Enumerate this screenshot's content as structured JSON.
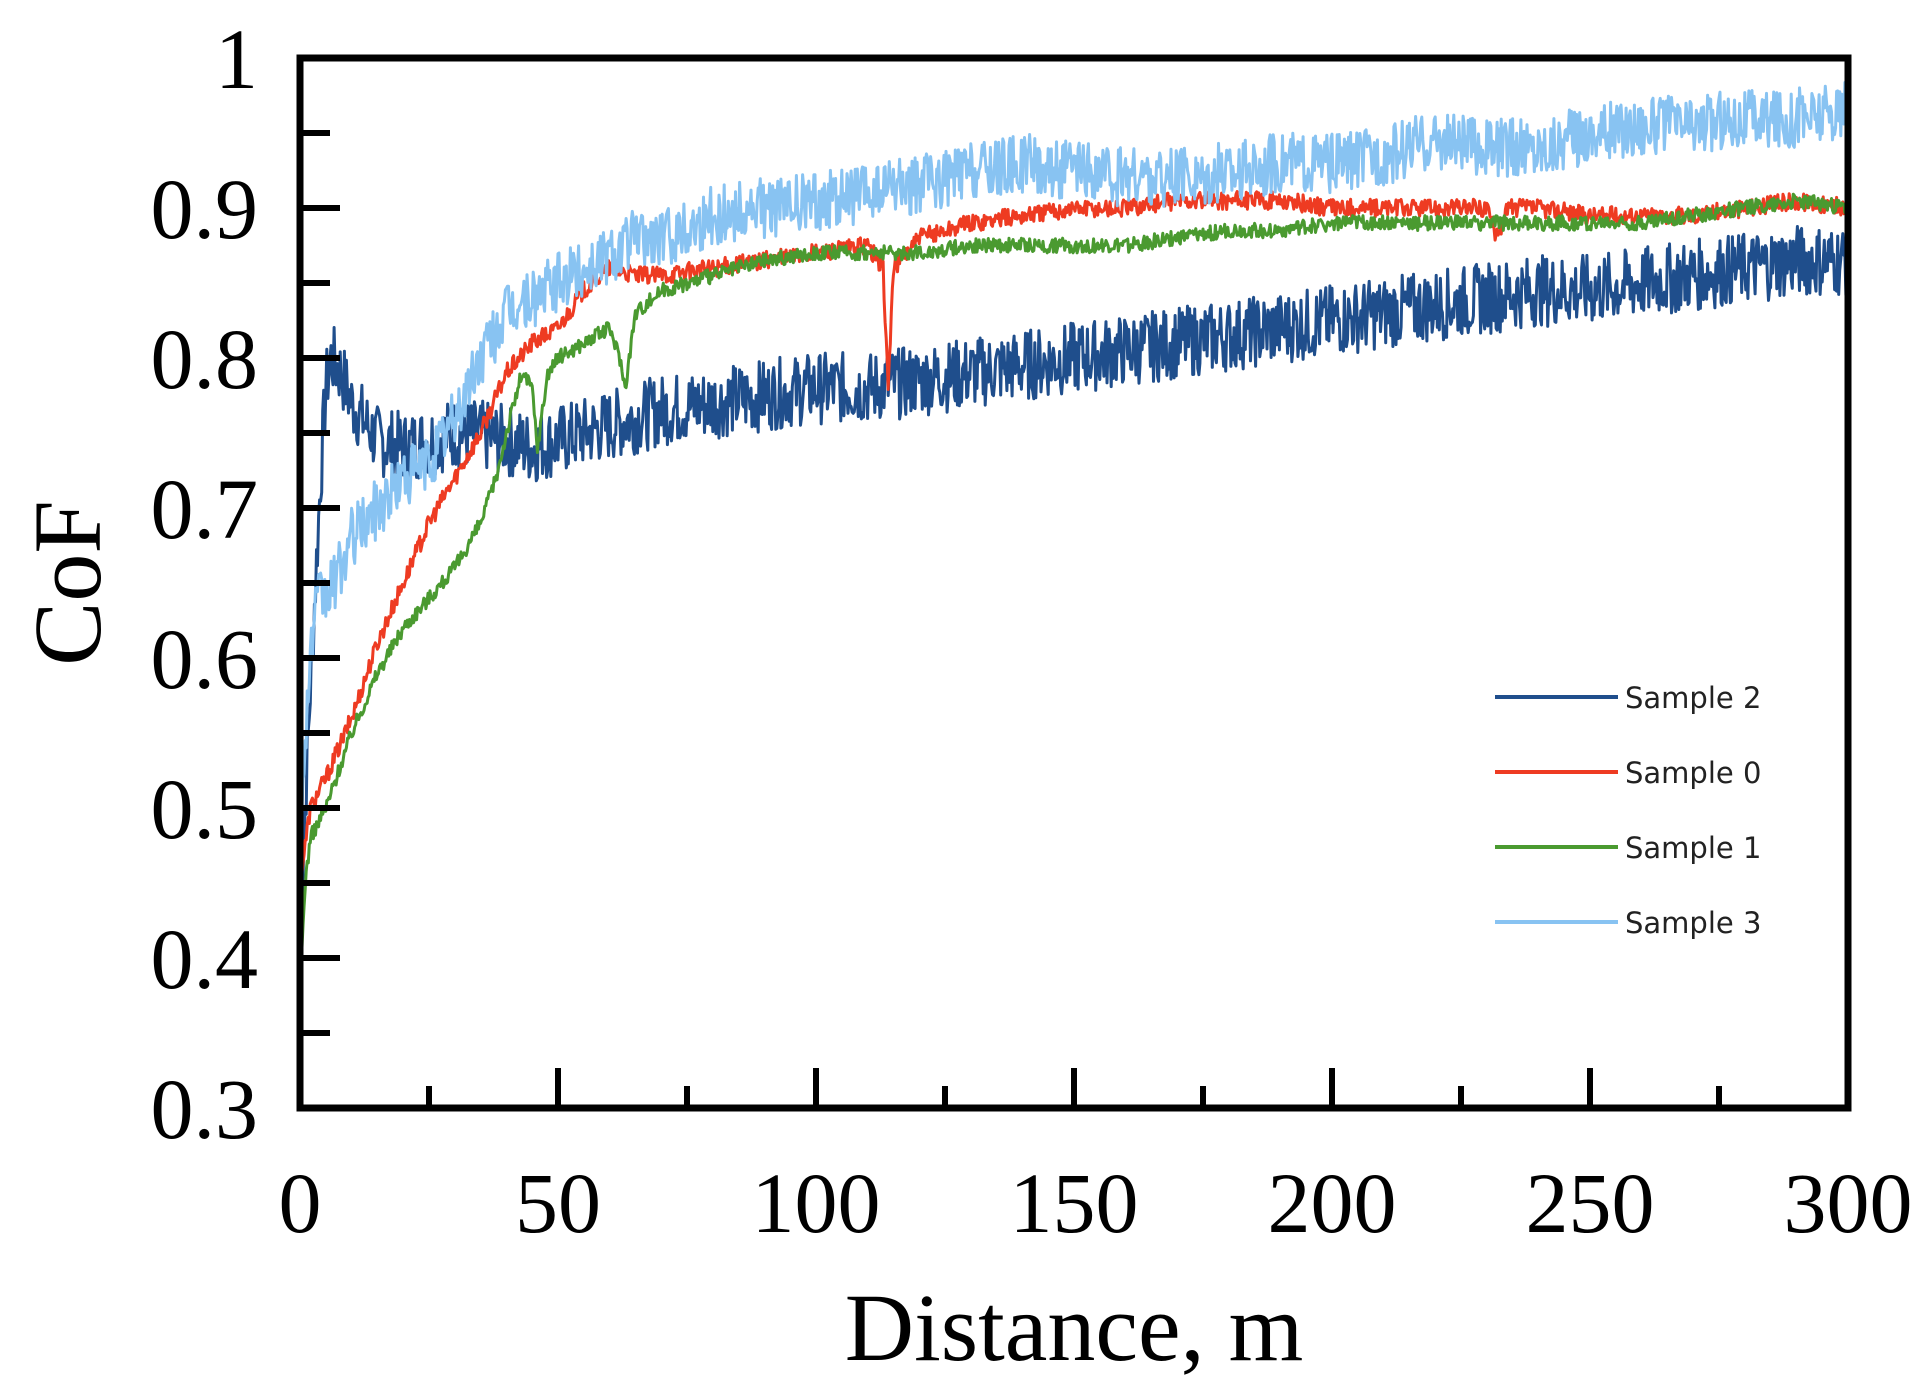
{
  "chart_data": {
    "type": "line",
    "title": "",
    "xlabel": "Distance, m",
    "ylabel": "CoF",
    "xlim": [
      0,
      300
    ],
    "ylim": [
      0.3,
      1.0
    ],
    "x_ticks": [
      0,
      50,
      100,
      150,
      200,
      250,
      300
    ],
    "x_tick_labels": [
      "0",
      "50",
      "100",
      "150",
      "200",
      "250",
      "300"
    ],
    "x_minor_ticks": [
      25,
      75,
      125,
      175,
      225,
      275
    ],
    "y_ticks": [
      0.3,
      0.4,
      0.5,
      0.6,
      0.7,
      0.8,
      0.9,
      1.0
    ],
    "y_tick_labels": [
      "0.3",
      "0.4",
      "0.5",
      "0.6",
      "0.7",
      "0.8",
      "0.9",
      "1"
    ],
    "y_minor_ticks": [
      0.35,
      0.45,
      0.55,
      0.65,
      0.75,
      0.85,
      0.95
    ],
    "grid": false,
    "legend_position": "center-right",
    "series": [
      {
        "name": "Sample 2",
        "color": "#1f4e8c",
        "noise": 0.024,
        "x": [
          0,
          1,
          2,
          3,
          4,
          5,
          6,
          8,
          10,
          15,
          20,
          25,
          30,
          35,
          40,
          45,
          50,
          55,
          60,
          65,
          70,
          80,
          90,
          100,
          110,
          120,
          130,
          140,
          150,
          160,
          170,
          180,
          190,
          200,
          210,
          220,
          230,
          240,
          250,
          260,
          270,
          280,
          290,
          300
        ],
        "values": [
          0.42,
          0.5,
          0.58,
          0.65,
          0.72,
          0.78,
          0.8,
          0.79,
          0.77,
          0.745,
          0.74,
          0.745,
          0.75,
          0.748,
          0.745,
          0.74,
          0.745,
          0.75,
          0.755,
          0.76,
          0.765,
          0.77,
          0.775,
          0.78,
          0.78,
          0.785,
          0.79,
          0.795,
          0.8,
          0.805,
          0.81,
          0.815,
          0.82,
          0.825,
          0.83,
          0.835,
          0.84,
          0.845,
          0.845,
          0.85,
          0.855,
          0.86,
          0.865,
          0.865
        ]
      },
      {
        "name": "Sample 0",
        "color": "#ee3b22",
        "noise": 0.006,
        "x": [
          0,
          2,
          5,
          10,
          15,
          20,
          25,
          30,
          35,
          40,
          45,
          50,
          55,
          60,
          65,
          70,
          80,
          90,
          100,
          110,
          113,
          114,
          115,
          120,
          130,
          140,
          150,
          160,
          170,
          180,
          190,
          200,
          210,
          220,
          230,
          232,
          234,
          240,
          250,
          260,
          270,
          280,
          290,
          300
        ],
        "values": [
          0.45,
          0.5,
          0.52,
          0.56,
          0.61,
          0.65,
          0.69,
          0.72,
          0.75,
          0.79,
          0.81,
          0.82,
          0.845,
          0.86,
          0.855,
          0.855,
          0.86,
          0.865,
          0.87,
          0.875,
          0.86,
          0.78,
          0.86,
          0.88,
          0.89,
          0.895,
          0.9,
          0.9,
          0.905,
          0.905,
          0.905,
          0.9,
          0.9,
          0.9,
          0.9,
          0.88,
          0.9,
          0.9,
          0.895,
          0.895,
          0.895,
          0.9,
          0.905,
          0.9
        ]
      },
      {
        "name": "Sample 1",
        "color": "#4a9a30",
        "noise": 0.005,
        "x": [
          0,
          1,
          2,
          5,
          10,
          15,
          20,
          25,
          30,
          35,
          38,
          40,
          43,
          45,
          46,
          48,
          50,
          55,
          60,
          62,
          63,
          65,
          70,
          80,
          90,
          100,
          110,
          120,
          130,
          140,
          150,
          160,
          170,
          180,
          190,
          200,
          210,
          220,
          230,
          240,
          250,
          260,
          270,
          280,
          290,
          300
        ],
        "values": [
          0.38,
          0.45,
          0.48,
          0.5,
          0.55,
          0.59,
          0.62,
          0.64,
          0.66,
          0.69,
          0.72,
          0.75,
          0.79,
          0.78,
          0.74,
          0.79,
          0.8,
          0.81,
          0.82,
          0.8,
          0.78,
          0.83,
          0.845,
          0.855,
          0.865,
          0.87,
          0.87,
          0.87,
          0.875,
          0.875,
          0.875,
          0.875,
          0.88,
          0.885,
          0.885,
          0.89,
          0.89,
          0.89,
          0.89,
          0.89,
          0.89,
          0.89,
          0.895,
          0.9,
          0.905,
          0.9
        ]
      },
      {
        "name": "Sample 3",
        "color": "#88c3f2",
        "noise": 0.02,
        "x": [
          0,
          1,
          2,
          3,
          4,
          5,
          8,
          10,
          15,
          20,
          25,
          30,
          35,
          40,
          45,
          50,
          55,
          60,
          65,
          70,
          80,
          90,
          100,
          110,
          120,
          130,
          140,
          150,
          160,
          170,
          180,
          190,
          200,
          210,
          220,
          230,
          240,
          250,
          260,
          270,
          280,
          290,
          300
        ],
        "values": [
          0.45,
          0.55,
          0.6,
          0.63,
          0.64,
          0.64,
          0.66,
          0.68,
          0.7,
          0.72,
          0.73,
          0.76,
          0.8,
          0.83,
          0.84,
          0.85,
          0.86,
          0.87,
          0.88,
          0.88,
          0.895,
          0.9,
          0.905,
          0.91,
          0.915,
          0.925,
          0.93,
          0.925,
          0.92,
          0.92,
          0.925,
          0.93,
          0.93,
          0.935,
          0.945,
          0.94,
          0.94,
          0.95,
          0.955,
          0.955,
          0.96,
          0.96,
          0.965
        ]
      }
    ],
    "legend": [
      "Sample 2",
      "Sample 0",
      "Sample 1",
      "Sample 3"
    ]
  }
}
